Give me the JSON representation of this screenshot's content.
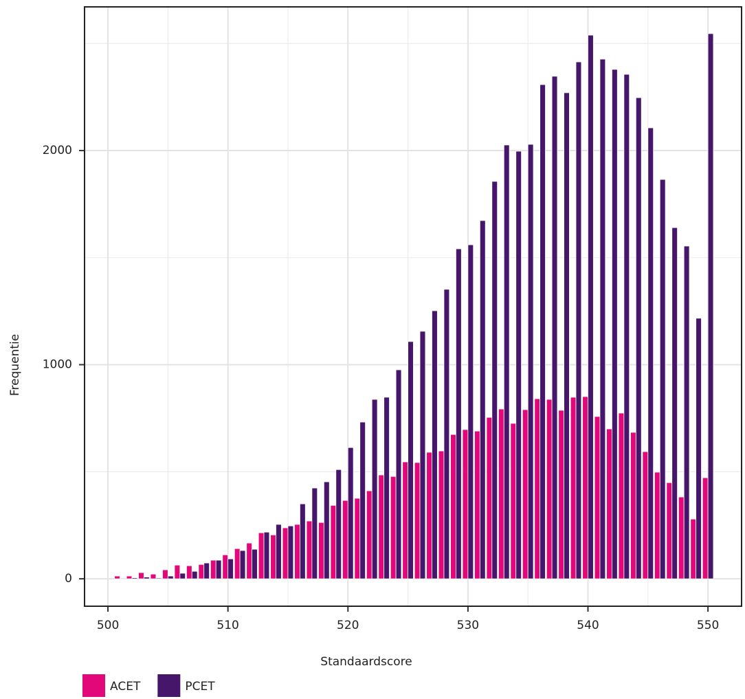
{
  "chart_data": {
    "type": "bar",
    "x_label": "Standaardscore",
    "y_label": "Frequentie",
    "x": [
      501,
      502,
      503,
      504,
      505,
      506,
      507,
      508,
      509,
      510,
      511,
      512,
      513,
      514,
      515,
      516,
      517,
      518,
      519,
      520,
      521,
      522,
      523,
      524,
      525,
      526,
      527,
      528,
      529,
      530,
      531,
      532,
      533,
      534,
      535,
      536,
      537,
      538,
      539,
      540,
      541,
      542,
      543,
      544,
      545,
      546,
      547,
      548,
      549,
      550
    ],
    "series": [
      {
        "name": "ACET",
        "color": "#e2087a",
        "values": [
          13,
          13,
          29,
          22,
          42,
          64,
          61,
          67,
          87,
          112,
          141,
          167,
          215,
          205,
          238,
          254,
          270,
          263,
          343,
          366,
          376,
          411,
          485,
          478,
          546,
          543,
          591,
          597,
          674,
          697,
          690,
          754,
          793,
          726,
          790,
          841,
          838,
          787,
          848,
          851,
          758,
          700,
          774,
          684,
          594,
          498,
          449,
          382,
          279,
          472
        ]
      },
      {
        "name": "PCET",
        "color": "#45166a",
        "values": [
          3,
          5,
          8,
          4,
          13,
          26,
          35,
          74,
          87,
          93,
          132,
          138,
          218,
          254,
          247,
          350,
          424,
          453,
          510,
          613,
          732,
          838,
          848,
          976,
          1108,
          1156,
          1252,
          1352,
          1541,
          1560,
          1673,
          1856,
          2026,
          1997,
          2029,
          2308,
          2347,
          2270,
          2414,
          2539,
          2427,
          2379,
          2356,
          2247,
          2106,
          1865,
          1640,
          1554,
          1217,
          2546
        ]
      }
    ],
    "xlim": [
      498.05,
      552.8
    ],
    "xticks": [
      500,
      510,
      520,
      530,
      540,
      550
    ],
    "x_minor_grid": [
      505,
      515,
      525,
      535,
      545
    ],
    "ylim": [
      -128,
      2671
    ],
    "yticks": [
      0,
      1000,
      2000
    ],
    "y_minor_grid": [
      500,
      1500,
      2500
    ],
    "grid": true,
    "legend": "bottom-left"
  }
}
